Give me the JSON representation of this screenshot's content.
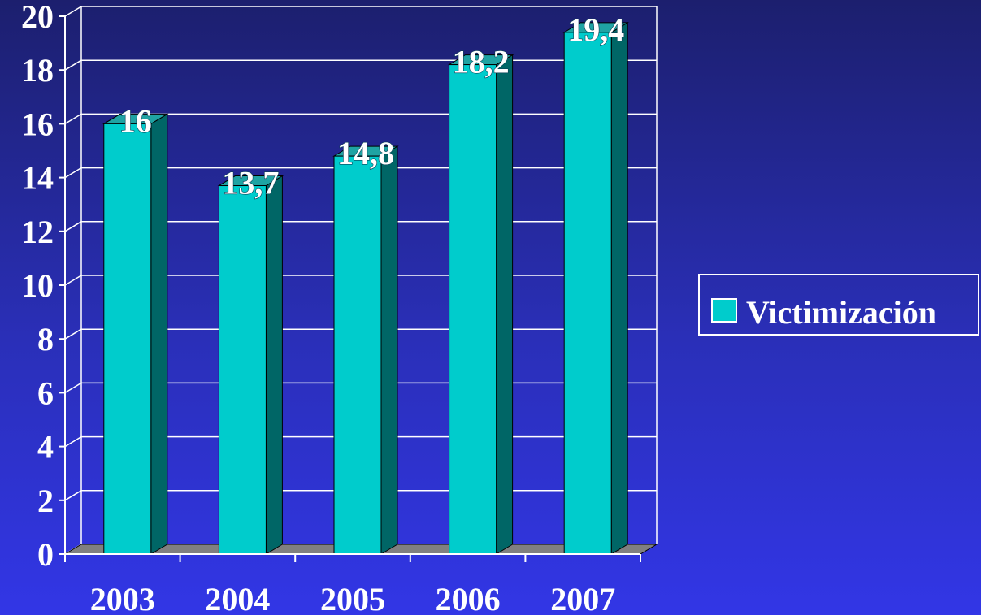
{
  "chart_data": {
    "type": "bar",
    "categories": [
      "2003",
      "2004",
      "2005",
      "2006",
      "2007"
    ],
    "series": [
      {
        "name": "Victimización",
        "values": [
          16,
          13.7,
          14.8,
          18.2,
          19.4
        ]
      }
    ],
    "data_labels": [
      "16",
      "13,7",
      "14,8",
      "18,2",
      "19,4"
    ],
    "y_ticks": [
      "0",
      "2",
      "4",
      "6",
      "8",
      "10",
      "12",
      "14",
      "16",
      "18",
      "20"
    ],
    "ylim": [
      0,
      20
    ],
    "grid": true,
    "legend_position": "right",
    "style": "3d"
  },
  "colors": {
    "bar_front": "#00cccc",
    "bar_side": "#006666",
    "bar_top": "#1fa3a3",
    "floor": "#808080",
    "grid": "#ffffff"
  }
}
